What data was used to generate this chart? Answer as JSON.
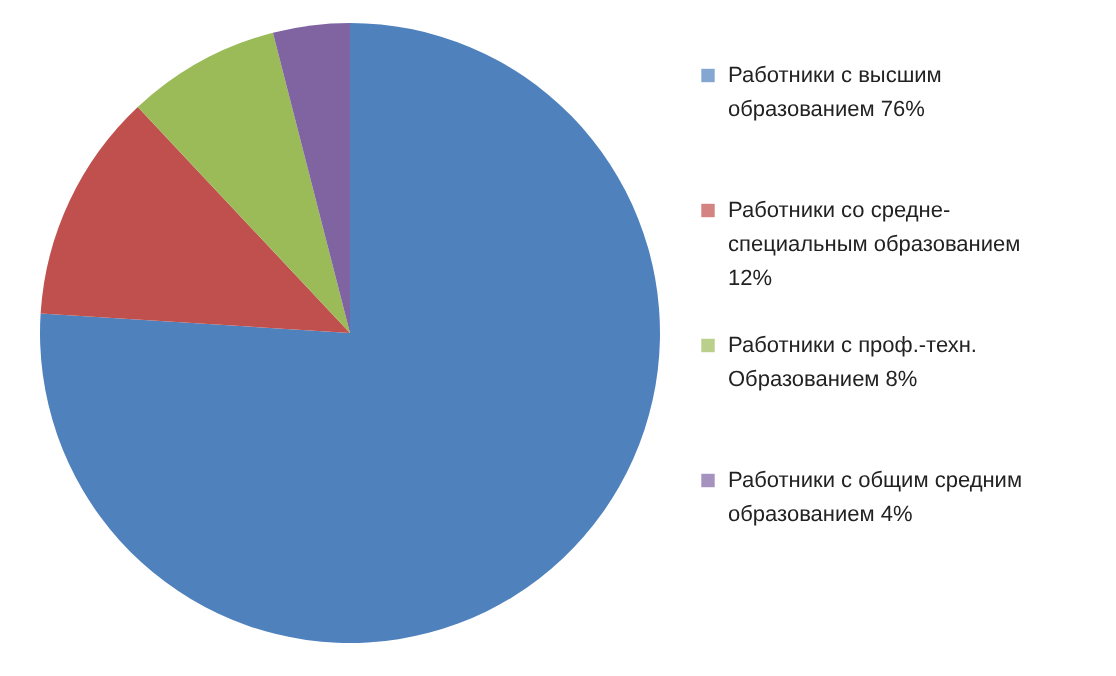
{
  "chart_data": {
    "type": "pie",
    "categories": [
      "Работники с высшим образованием 76%",
      "Работники со средне-специальным образованием 12%",
      "Работники с проф.-техн. Образованием 8%",
      "Работники с общим средним образованием 4%"
    ],
    "values": [
      76,
      12,
      8,
      4
    ],
    "colors": [
      "#4f81bd",
      "#c0504d",
      "#9bbb59",
      "#8064a2"
    ],
    "legend": "right"
  }
}
